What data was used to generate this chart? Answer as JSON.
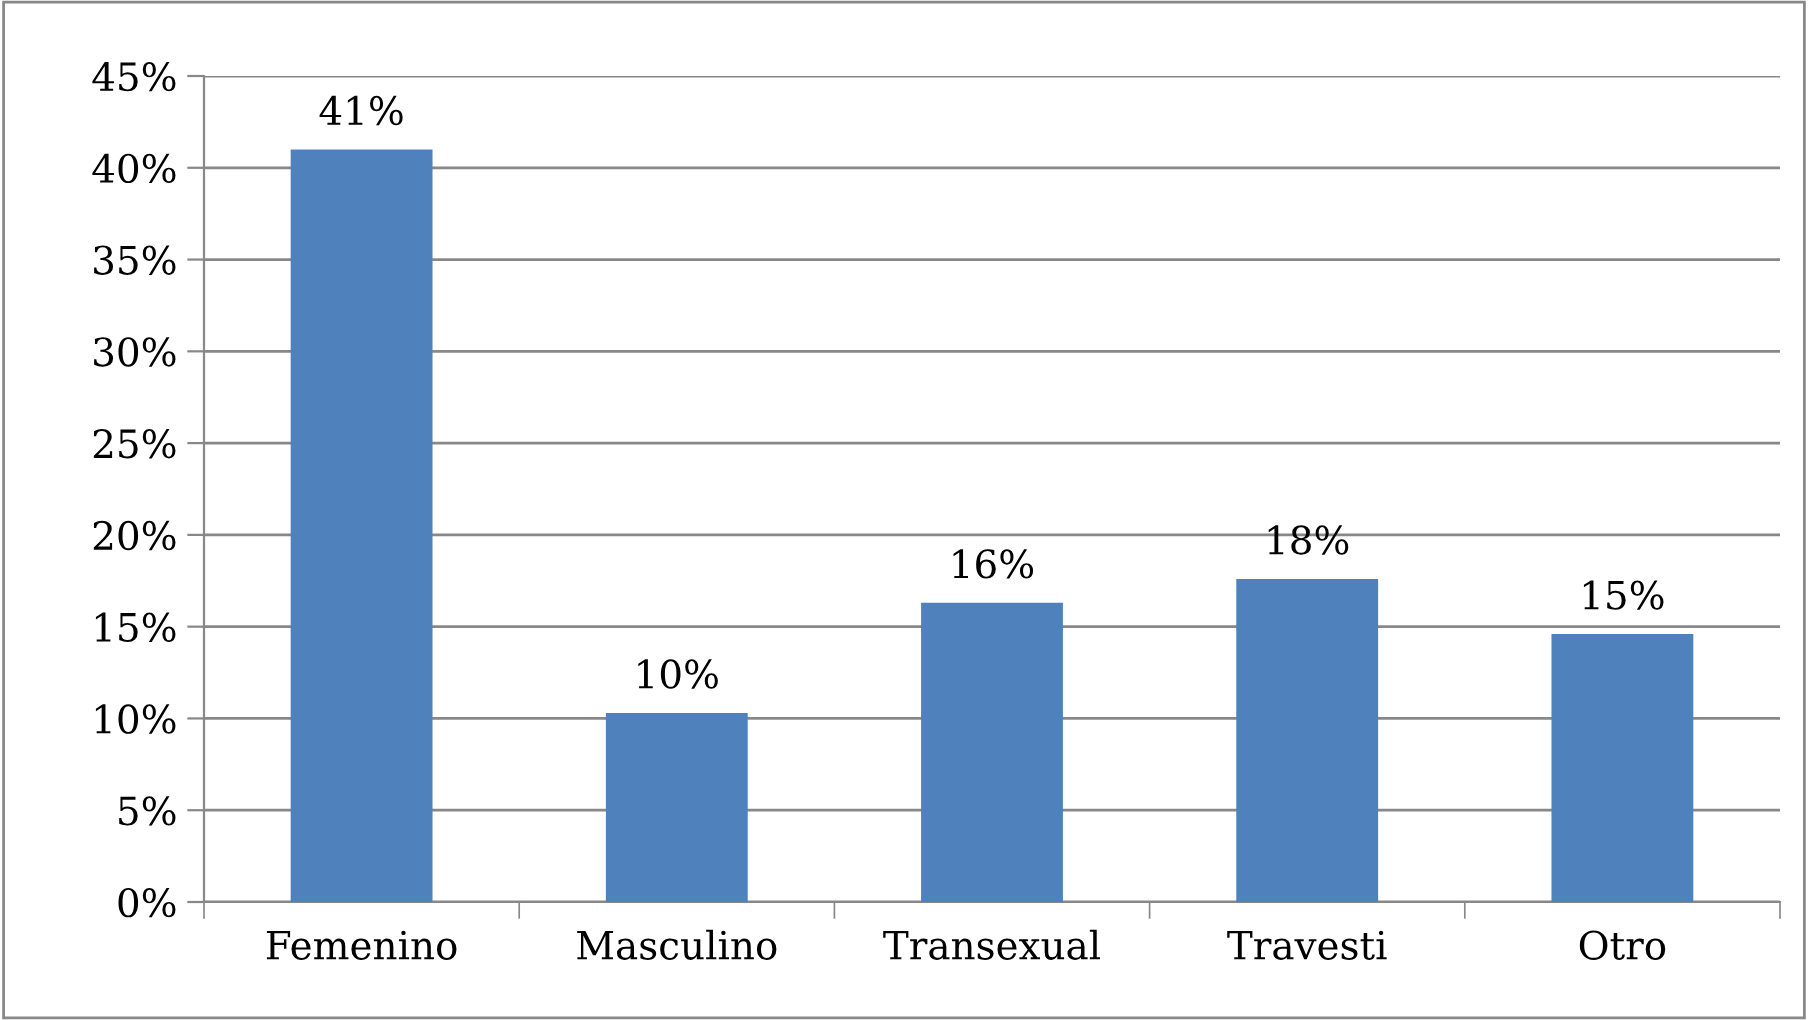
{
  "chart_data": {
    "type": "bar",
    "categories": [
      "Femenino",
      "Masculino",
      "Transexual",
      "Travesti",
      "Otro"
    ],
    "values": [
      41.0,
      10.3,
      16.3,
      17.6,
      14.6
    ],
    "value_labels": [
      "41%",
      "10%",
      "16%",
      "18%",
      "15%"
    ],
    "color": "#4f81bd",
    "ylim": [
      0,
      45
    ],
    "yticks": [
      {
        "value": 0,
        "label": "0%"
      },
      {
        "value": 5,
        "label": "5%"
      },
      {
        "value": 10,
        "label": "10%"
      },
      {
        "value": 15,
        "label": "15%"
      },
      {
        "value": 20,
        "label": "20%"
      },
      {
        "value": 25,
        "label": "25%"
      },
      {
        "value": 30,
        "label": "30%"
      },
      {
        "value": 35,
        "label": "35%"
      },
      {
        "value": 40,
        "label": "40%"
      },
      {
        "value": 45,
        "label": "45%"
      }
    ],
    "grid": "y",
    "legend": false
  }
}
